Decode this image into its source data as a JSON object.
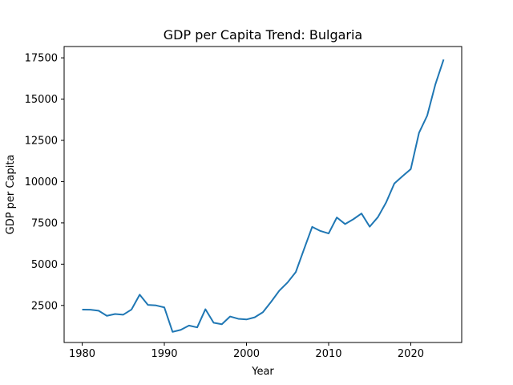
{
  "chart_data": {
    "type": "line",
    "title": "GDP per Capita Trend: Bulgaria",
    "xlabel": "Year",
    "ylabel": "GDP per Capita",
    "xlim": [
      1977.8,
      2026.2
    ],
    "ylim": [
      255,
      18185
    ],
    "xticks": [
      1980,
      1990,
      2000,
      2010,
      2020
    ],
    "yticks": [
      2500,
      5000,
      7500,
      10000,
      12500,
      15000,
      17500
    ],
    "xtick_labels": [
      "1980",
      "1990",
      "2000",
      "2010",
      "2020"
    ],
    "ytick_labels": [
      "2500",
      "5000",
      "7500",
      "10000",
      "12500",
      "15000",
      "17500"
    ],
    "grid": false,
    "legend": "none",
    "series": [
      {
        "color": "#1f77b4",
        "x": [
          1980,
          1981,
          1982,
          1983,
          1984,
          1985,
          1986,
          1987,
          1988,
          1989,
          1990,
          1991,
          1992,
          1993,
          1994,
          1995,
          1996,
          1997,
          1998,
          1999,
          2000,
          2001,
          2002,
          2003,
          2004,
          2005,
          2006,
          2007,
          2008,
          2009,
          2010,
          2011,
          2012,
          2013,
          2014,
          2015,
          2016,
          2017,
          2018,
          2019,
          2020,
          2021,
          2022,
          2023,
          2024
        ],
        "y": [
          2250,
          2240,
          2180,
          1870,
          1980,
          1940,
          2250,
          3150,
          2530,
          2500,
          2380,
          900,
          1020,
          1280,
          1170,
          2270,
          1450,
          1360,
          1830,
          1690,
          1650,
          1780,
          2090,
          2720,
          3400,
          3890,
          4520,
          5900,
          7260,
          7010,
          6860,
          7830,
          7430,
          7720,
          8070,
          7270,
          7850,
          8740,
          9890,
          10330,
          10760,
          12950,
          14000,
          15900,
          17400
        ]
      }
    ]
  }
}
